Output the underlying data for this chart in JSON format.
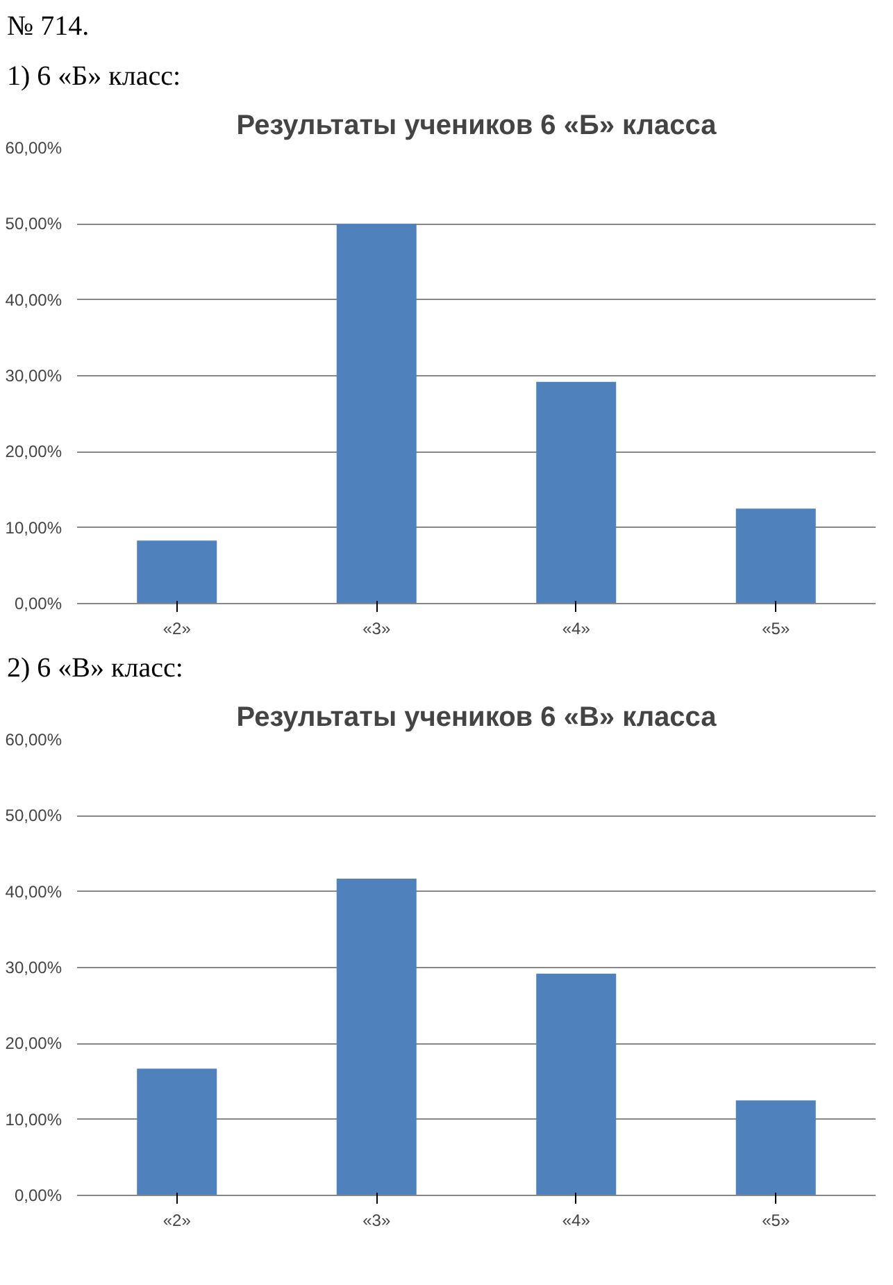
{
  "chart_data": [
    {
      "type": "bar",
      "title": "Результаты учеников 6 «Б» класса",
      "annotations": [
        "№ 714.",
        "1) 6 «Б» класс:"
      ],
      "categories": [
        "«2»",
        "«3»",
        "«4»",
        "«5»"
      ],
      "values": [
        8.3,
        50,
        29.2,
        12.5
      ],
      "color": "#4f81bd",
      "ylim": [
        0,
        60
      ],
      "yticks": [
        {
          "value": 0,
          "label": "0,00%"
        },
        {
          "value": 10,
          "label": "10,00%"
        },
        {
          "value": 20,
          "label": "20,00%"
        },
        {
          "value": 30,
          "label": "30,00%"
        },
        {
          "value": 40,
          "label": "40,00%"
        },
        {
          "value": 50,
          "label": "50,00%"
        },
        {
          "value": 60,
          "label": "60,00%"
        }
      ],
      "grid": "y"
    },
    {
      "type": "bar",
      "title": "Результаты учеников 6 «В» класса",
      "annotations": [
        "2) 6 «В» класс:"
      ],
      "categories": [
        "«2»",
        "«3»",
        "«4»",
        "«5»"
      ],
      "values": [
        16.7,
        41.7,
        29.2,
        12.5
      ],
      "color": "#4f81bd",
      "ylim": [
        0,
        60
      ],
      "yticks": [
        {
          "value": 0,
          "label": "0,00%"
        },
        {
          "value": 10,
          "label": "10,00%"
        },
        {
          "value": 20,
          "label": "20,00%"
        },
        {
          "value": 30,
          "label": "30,00%"
        },
        {
          "value": 40,
          "label": "40,00%"
        },
        {
          "value": 50,
          "label": "50,00%"
        },
        {
          "value": 60,
          "label": "60,00%"
        }
      ],
      "grid": "y"
    }
  ]
}
